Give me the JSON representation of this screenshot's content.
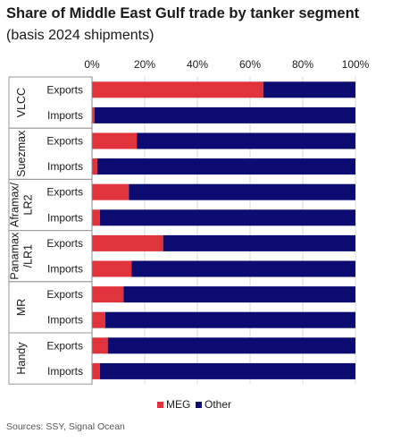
{
  "title": "Share of Middle East Gulf trade by tanker segment",
  "subtitle": "(basis 2024 shipments)",
  "source": "Sources: SSY, Signal Ocean",
  "colors": {
    "meg": "#e0333c",
    "other": "#0b0b72",
    "grid": "#d8d8d8",
    "border": "#9a9a9a"
  },
  "chart_data": {
    "type": "bar",
    "orientation": "horizontal",
    "stacked": true,
    "xlim": [
      0,
      100
    ],
    "x_ticks": [
      "0%",
      "20%",
      "40%",
      "60%",
      "80%",
      "100%"
    ],
    "groups": [
      {
        "label": "VLCC",
        "label_lines": [
          "VLCC"
        ],
        "rows": [
          {
            "label": "Exports",
            "meg": 65,
            "other": 35
          },
          {
            "label": "Imports",
            "meg": 1,
            "other": 99
          }
        ]
      },
      {
        "label": "Suezmax",
        "label_lines": [
          "Suezmax"
        ],
        "rows": [
          {
            "label": "Exports",
            "meg": 17,
            "other": 83
          },
          {
            "label": "Imports",
            "meg": 2,
            "other": 98
          }
        ]
      },
      {
        "label": "Aframax/ LR2",
        "label_lines": [
          "Aframax/",
          "LR2"
        ],
        "rows": [
          {
            "label": "Exports",
            "meg": 14,
            "other": 86
          },
          {
            "label": "Imports",
            "meg": 3,
            "other": 97
          }
        ]
      },
      {
        "label": "Panamax /LR1",
        "label_lines": [
          "Panamax",
          "/LR1"
        ],
        "rows": [
          {
            "label": "Exports",
            "meg": 27,
            "other": 73
          },
          {
            "label": "Imports",
            "meg": 15,
            "other": 85
          }
        ]
      },
      {
        "label": "MR",
        "label_lines": [
          "MR"
        ],
        "rows": [
          {
            "label": "Exports",
            "meg": 12,
            "other": 88
          },
          {
            "label": "Imports",
            "meg": 5,
            "other": 95
          }
        ]
      },
      {
        "label": "Handy",
        "label_lines": [
          "Handy"
        ],
        "rows": [
          {
            "label": "Exports",
            "meg": 6,
            "other": 94
          },
          {
            "label": "Imports",
            "meg": 3,
            "other": 97
          }
        ]
      }
    ],
    "series": [
      {
        "name": "MEG"
      },
      {
        "name": "Other"
      }
    ],
    "legend_position": "bottom"
  }
}
